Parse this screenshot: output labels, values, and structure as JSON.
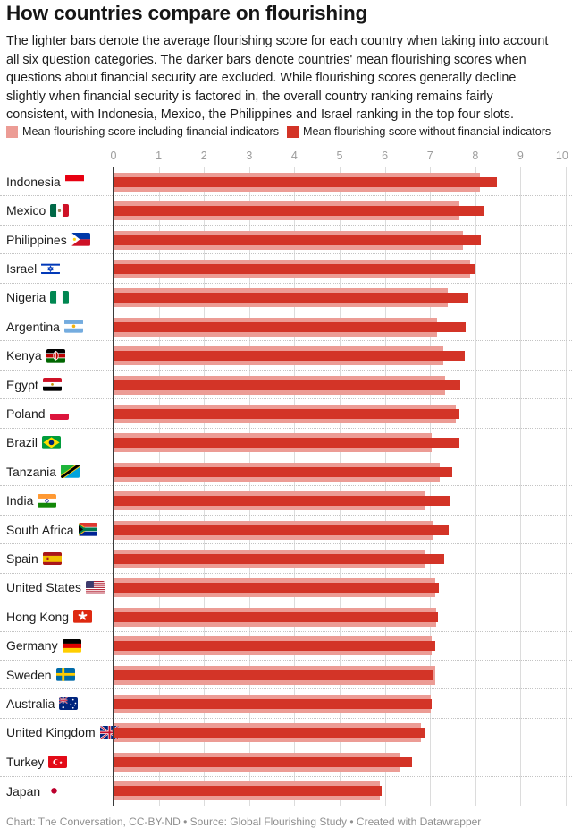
{
  "header": {
    "title": "How countries compare on flourishing",
    "description_lines": [
      "The lighter bars denote the average flourishing score for each country when taking into account",
      "all six question categories. The darker bars denote countries' mean flourishing scores when",
      "questions about financial security are excluded. While flourishing scores generally decline",
      "slightly when financial security is factored in, the overall country ranking remains fairly",
      "consistent, with Indonesia, Mexico, the Philippines and Israel ranking in the top four slots."
    ]
  },
  "legend": {
    "items": [
      {
        "key": "including",
        "label": "Mean flourishing score including financial indicators",
        "color": "#ec9c95"
      },
      {
        "key": "without",
        "label": "Mean flourishing score without financial indicators",
        "color": "#d33427"
      }
    ]
  },
  "chart_data": {
    "type": "bar",
    "orientation": "horizontal",
    "title": "How countries compare on flourishing",
    "x_axis": {
      "min": 0,
      "max": 10,
      "ticks": [
        0,
        1,
        2,
        3,
        4,
        5,
        6,
        7,
        8,
        9,
        10
      ]
    },
    "grid": true,
    "legend_position": "top",
    "categories": [
      "Indonesia",
      "Mexico",
      "Philippines",
      "Israel",
      "Nigeria",
      "Argentina",
      "Kenya",
      "Egypt",
      "Poland",
      "Brazil",
      "Tanzania",
      "India",
      "South Africa",
      "Spain",
      "United States",
      "Hong Kong",
      "Germany",
      "Sweden",
      "Australia",
      "United Kingdom",
      "Turkey",
      "Japan"
    ],
    "flag_icons": [
      "indonesia-flag-icon",
      "mexico-flag-icon",
      "philippines-flag-icon",
      "israel-flag-icon",
      "nigeria-flag-icon",
      "argentina-flag-icon",
      "kenya-flag-icon",
      "egypt-flag-icon",
      "poland-flag-icon",
      "brazil-flag-icon",
      "tanzania-flag-icon",
      "india-flag-icon",
      "south-africa-flag-icon",
      "spain-flag-icon",
      "united-states-flag-icon",
      "hong-kong-flag-icon",
      "germany-flag-icon",
      "sweden-flag-icon",
      "australia-flag-icon",
      "united-kingdom-flag-icon",
      "turkey-flag-icon",
      "japan-flag-icon"
    ],
    "series": [
      {
        "name": "Mean flourishing score including financial indicators",
        "values": [
          8.1,
          7.64,
          7.72,
          7.88,
          7.39,
          7.16,
          7.29,
          7.34,
          7.57,
          7.03,
          7.21,
          6.87,
          7.07,
          6.9,
          7.11,
          7.13,
          7.03,
          7.11,
          7.02,
          6.79,
          6.32,
          5.89
        ]
      },
      {
        "name": "Mean flourishing score without financial indicators",
        "values": [
          8.48,
          8.21,
          8.12,
          8.01,
          7.84,
          7.79,
          7.77,
          7.66,
          7.65,
          7.64,
          7.49,
          7.44,
          7.42,
          7.31,
          7.2,
          7.18,
          7.11,
          7.06,
          7.04,
          6.88,
          6.61,
          5.92
        ]
      }
    ]
  },
  "colors": {
    "bar_including": "#ec9c95",
    "bar_without": "#d33427",
    "axis_text": "#9c9c9c",
    "gridline": "#dcdcdc",
    "zero_line": "#3a3a3a",
    "separator": "#c4c4c4",
    "text": "#1d1d1d",
    "footer_text": "#8f8f8f"
  },
  "footer": {
    "text": "Chart: The Conversation, CC-BY-ND • Source: Global Flourishing Study • Created with Datawrapper"
  }
}
